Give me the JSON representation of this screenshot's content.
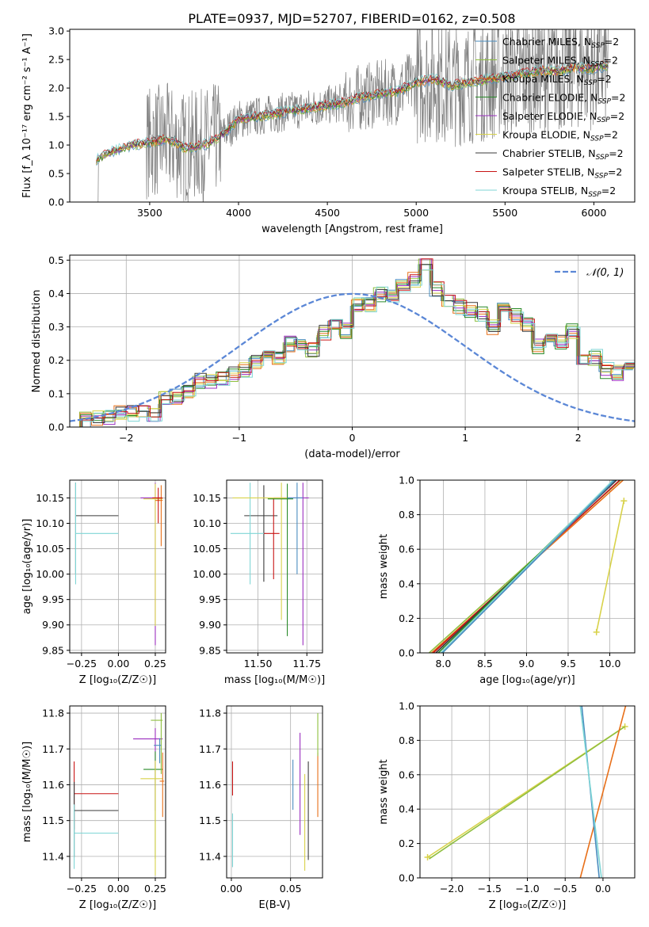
{
  "title": "PLATE=0937, MJD=52707, FIBERID=0162, z=0.508",
  "colors": {
    "chabrier_miles": "#4a8dbf",
    "salpeter_miles": "#8fbf3f",
    "kroupa_miles": "#e8701a",
    "chabrier_elodie": "#2a8a2a",
    "salpeter_elodie": "#9b2fbf",
    "kroupa_elodie": "#d8d24a",
    "chabrier_stelib": "#3a3a3a",
    "salpeter_stelib": "#c81414",
    "kroupa_stelib": "#7fd6d6",
    "gauss": "#5b87d6",
    "data_spectrum": "#7f7f7f"
  },
  "chart_data": [
    {
      "id": "spectrum",
      "type": "line",
      "xlabel": "wavelength [Angstrom, rest frame]",
      "ylabel": "Flux [f_λ 10⁻¹⁷ erg cm⁻² s⁻¹ A⁻¹]",
      "xlim": [
        3050,
        6230
      ],
      "ylim": [
        0,
        3.03
      ],
      "xticks": [
        3500,
        4000,
        4500,
        5000,
        5500,
        6000
      ],
      "yticks": [
        0.0,
        0.5,
        1.0,
        1.5,
        2.0,
        2.5,
        3.0
      ],
      "grid": false,
      "legend_position": "upper-right",
      "legend": [
        {
          "label": "Chabrier MILES, N",
          "sub": "SSP",
          "tail": "=2",
          "color_key": "chabrier_miles"
        },
        {
          "label": "Salpeter MILES, N",
          "sub": "SSP",
          "tail": "=2",
          "color_key": "salpeter_miles"
        },
        {
          "label": "Kroupa MILES, N",
          "sub": "SSP",
          "tail": "=2",
          "color_key": "kroupa_miles"
        },
        {
          "label": "Chabrier ELODIE, N",
          "sub": "SSP",
          "tail": "=2",
          "color_key": "chabrier_elodie"
        },
        {
          "label": "Salpeter ELODIE, N",
          "sub": "SSP",
          "tail": "=2",
          "color_key": "salpeter_elodie"
        },
        {
          "label": "Kroupa ELODIE, N",
          "sub": "SSP",
          "tail": "=2",
          "color_key": "kroupa_elodie"
        },
        {
          "label": "Chabrier STELIB, N",
          "sub": "SSP",
          "tail": "=2",
          "color_key": "chabrier_stelib"
        },
        {
          "label": "Salpeter STELIB, N",
          "sub": "SSP",
          "tail": "=2",
          "color_key": "salpeter_stelib"
        },
        {
          "label": "Kroupa STELIB, N",
          "sub": "SSP",
          "tail": "=2",
          "color_key": "kroupa_stelib"
        }
      ],
      "model_x": [
        3200,
        3300,
        3400,
        3500,
        3600,
        3700,
        3800,
        3900,
        4000,
        4100,
        4200,
        4300,
        4400,
        4500,
        4600,
        4700,
        4800,
        4900,
        5000,
        5100,
        5200,
        5300,
        5400,
        5500,
        5600,
        5700,
        5800,
        5900,
        6000,
        6080
      ],
      "model_y": [
        0.75,
        0.9,
        1.0,
        1.05,
        1.1,
        0.95,
        1.0,
        1.15,
        1.45,
        1.5,
        1.55,
        1.6,
        1.65,
        1.7,
        1.75,
        1.85,
        1.9,
        1.95,
        2.1,
        2.15,
        2.05,
        2.1,
        2.15,
        2.2,
        2.25,
        2.3,
        2.3,
        2.35,
        2.35,
        2.4
      ]
    },
    {
      "id": "residuals",
      "type": "step",
      "xlabel": "(data-model)/error",
      "ylabel": "Normed distribution",
      "xlim": [
        -2.5,
        2.5
      ],
      "ylim": [
        0,
        0.515
      ],
      "xticks": [
        -2,
        -1,
        0,
        1,
        2
      ],
      "yticks": [
        0.0,
        0.1,
        0.2,
        0.3,
        0.4,
        0.5
      ],
      "grid": true,
      "legend_position": "upper-right",
      "legend_label": "𝒩(0, 1)",
      "bin_edges_start": -2.5,
      "bin_width": 0.1,
      "hist_values": [
        0.02,
        0.02,
        0.03,
        0.03,
        0.04,
        0.04,
        0.05,
        0.04,
        0.09,
        0.09,
        0.1,
        0.14,
        0.14,
        0.15,
        0.16,
        0.17,
        0.19,
        0.22,
        0.2,
        0.25,
        0.24,
        0.23,
        0.28,
        0.3,
        0.29,
        0.37,
        0.37,
        0.4,
        0.39,
        0.43,
        0.44,
        0.48,
        0.41,
        0.38,
        0.36,
        0.35,
        0.34,
        0.3,
        0.36,
        0.33,
        0.31,
        0.24,
        0.26,
        0.25,
        0.29,
        0.2,
        0.21,
        0.17,
        0.16,
        0.17
      ],
      "gauss": {
        "mean": 0,
        "sigma": 1
      }
    },
    {
      "id": "age_vs_Z",
      "type": "errorbar",
      "xlabel": "Z [log₁₀(Z/Z☉)]",
      "ylabel": "age  [log₁₀(age/yr)]",
      "xlim": [
        -0.33,
        0.32
      ],
      "ylim": [
        9.845,
        10.185
      ],
      "xticks": [
        -0.25,
        0.0,
        0.25
      ],
      "xtick_labels": [
        "−0.25",
        "0.00",
        "0.25"
      ],
      "yticks": [
        9.85,
        9.9,
        9.95,
        10.0,
        10.05,
        10.1,
        10.15
      ],
      "grid": true,
      "points": [
        {
          "color_key": "chabrier_stelib",
          "x": -0.29,
          "y": 10.115,
          "xerr": [
            0.0,
            0.29
          ],
          "yerr": [
            0.115,
            0.065
          ]
        },
        {
          "color_key": "kroupa_stelib",
          "x": -0.29,
          "y": 10.08,
          "xerr": [
            0.0,
            0.29
          ],
          "yerr": [
            0.1,
            0.1
          ]
        },
        {
          "color_key": "salpeter_elodie",
          "x": 0.25,
          "y": 10.15,
          "xerr": [
            0.1,
            0.04
          ],
          "yerr": [
            0.29,
            0.03
          ]
        },
        {
          "color_key": "kroupa_elodie",
          "x": 0.25,
          "y": 10.148,
          "xerr": [
            0.08,
            0.05
          ],
          "yerr": [
            0.25,
            0.03
          ]
        },
        {
          "color_key": "kroupa_miles",
          "x": 0.29,
          "y": 10.145,
          "xerr": [
            0.04,
            0.01
          ],
          "yerr": [
            0.09,
            0.03
          ]
        },
        {
          "color_key": "salpeter_stelib",
          "x": 0.27,
          "y": 10.15,
          "xerr": [
            0.04,
            0.03
          ],
          "yerr": [
            0.05,
            0.02
          ]
        }
      ]
    },
    {
      "id": "age_vs_mass",
      "type": "errorbar",
      "xlabel": "mass [log₁₀(M/M☉)]",
      "ylabel": "",
      "xlim": [
        11.34,
        11.83
      ],
      "ylim": [
        9.845,
        10.185
      ],
      "xticks": [
        11.5,
        11.75
      ],
      "xtick_labels": [
        "11.50",
        "11.75"
      ],
      "yticks": [
        9.85,
        9.9,
        9.95,
        10.0,
        10.05,
        10.1,
        10.15
      ],
      "grid": true,
      "points": [
        {
          "color_key": "chabrier_stelib",
          "x": 11.53,
          "y": 10.115,
          "xerr": [
            0.1,
            0.07
          ],
          "yerr": [
            0.13,
            0.06
          ]
        },
        {
          "color_key": "kroupa_stelib",
          "x": 11.46,
          "y": 10.08,
          "xerr": [
            0.1,
            0.08
          ],
          "yerr": [
            0.1,
            0.1
          ]
        },
        {
          "color_key": "salpeter_stelib",
          "x": 11.58,
          "y": 10.08,
          "xerr": [
            0.05,
            0.03
          ],
          "yerr": [
            0.09,
            0.07
          ]
        },
        {
          "color_key": "salpeter_elodie",
          "x": 11.73,
          "y": 10.15,
          "xerr": [
            0.15,
            0.03
          ],
          "yerr": [
            0.29,
            0.03
          ]
        },
        {
          "color_key": "kroupa_elodie",
          "x": 11.62,
          "y": 10.15,
          "xerr": [
            0.25,
            0.03
          ],
          "yerr": [
            0.24,
            0.03
          ]
        },
        {
          "color_key": "chabrier_elodie",
          "x": 11.65,
          "y": 10.148,
          "xerr": [
            0.1,
            0.03
          ],
          "yerr": [
            0.27,
            0.03
          ]
        },
        {
          "color_key": "chabrier_miles",
          "x": 11.7,
          "y": 10.15,
          "xerr": [
            0.05,
            0.03
          ],
          "yerr": [
            0.15,
            0.03
          ]
        }
      ]
    },
    {
      "id": "weight_vs_age",
      "type": "line",
      "xlabel": "age  [log₁₀(age/yr)]",
      "ylabel": "mass weight",
      "xlim": [
        7.72,
        10.3
      ],
      "ylim": [
        0,
        1
      ],
      "xticks": [
        8.0,
        8.5,
        9.0,
        9.5,
        10.0
      ],
      "yticks": [
        0.0,
        0.2,
        0.4,
        0.6,
        0.8,
        1.0
      ],
      "grid": true,
      "series": [
        {
          "color_key": "salpeter_miles",
          "x": [
            7.83,
            10.13
          ],
          "y": [
            0.0,
            1.0
          ],
          "marker": false
        },
        {
          "color_key": "kroupa_miles",
          "x": [
            7.86,
            10.16
          ],
          "y": [
            0.0,
            1.0
          ],
          "marker": false
        },
        {
          "color_key": "salpeter_stelib",
          "x": [
            7.88,
            10.12
          ],
          "y": [
            0.0,
            1.0
          ],
          "marker": false
        },
        {
          "color_key": "chabrier_stelib",
          "x": [
            7.91,
            10.08
          ],
          "y": [
            0.0,
            1.0
          ],
          "marker": false
        },
        {
          "color_key": "chabrier_elodie",
          "x": [
            7.94,
            10.05
          ],
          "y": [
            0.0,
            1.0
          ],
          "marker": false
        },
        {
          "color_key": "kroupa_stelib",
          "x": [
            7.97,
            10.04
          ],
          "y": [
            0.0,
            1.0
          ],
          "marker": false
        },
        {
          "color_key": "chabrier_miles",
          "x": [
            7.99,
            10.06
          ],
          "y": [
            0.0,
            1.0
          ],
          "marker": false
        },
        {
          "color_key": "kroupa_elodie",
          "x": [
            9.84,
            10.17
          ],
          "y": [
            0.12,
            0.88
          ],
          "marker": true
        }
      ]
    },
    {
      "id": "mass_vs_Z",
      "type": "errorbar",
      "xlabel": "Z [log₁₀(Z/Z☉)]",
      "ylabel": "mass [log₁₀(M/M☉)]",
      "xlim": [
        -0.33,
        0.32
      ],
      "ylim": [
        11.34,
        11.82
      ],
      "xticks": [
        -0.25,
        0.0,
        0.25
      ],
      "xtick_labels": [
        "−0.25",
        "0.00",
        "0.25"
      ],
      "yticks": [
        11.4,
        11.5,
        11.6,
        11.7,
        11.8
      ],
      "grid": true,
      "points": [
        {
          "color_key": "salpeter_stelib",
          "x": -0.3,
          "y": 11.575,
          "xerr": [
            0.0,
            0.3
          ],
          "yerr": [
            0.1,
            0.09
          ]
        },
        {
          "color_key": "chabrier_stelib",
          "x": -0.3,
          "y": 11.528,
          "xerr": [
            0.0,
            0.3
          ],
          "yerr": [
            0.13,
            0.08
          ]
        },
        {
          "color_key": "kroupa_stelib",
          "x": -0.3,
          "y": 11.465,
          "xerr": [
            0.0,
            0.3
          ],
          "yerr": [
            0.1,
            0.08
          ]
        },
        {
          "color_key": "salpeter_elodie",
          "x": 0.25,
          "y": 11.728,
          "xerr": [
            0.15,
            0.05
          ],
          "yerr": [
            0.2,
            0.03
          ]
        },
        {
          "color_key": "chabrier_elodie",
          "x": 0.25,
          "y": 11.643,
          "xerr": [
            0.08,
            0.05
          ],
          "yerr": [
            0.25,
            0.05
          ]
        },
        {
          "color_key": "kroupa_elodie",
          "x": 0.25,
          "y": 11.617,
          "xerr": [
            0.1,
            0.05
          ],
          "yerr": [
            0.27,
            0.05
          ]
        },
        {
          "color_key": "salpeter_miles",
          "x": 0.29,
          "y": 11.78,
          "xerr": [
            0.07,
            0.01
          ],
          "yerr": [
            0.15,
            0.02
          ]
        },
        {
          "color_key": "kroupa_miles",
          "x": 0.3,
          "y": 11.61,
          "xerr": [
            0.02,
            0.01
          ],
          "yerr": [
            0.1,
            0.08
          ]
        },
        {
          "color_key": "chabrier_miles",
          "x": 0.28,
          "y": 11.71,
          "xerr": [
            0.04,
            0.01
          ],
          "yerr": [
            0.05,
            0.02
          ]
        }
      ]
    },
    {
      "id": "mass_vs_ebv",
      "type": "errorbar",
      "xlabel": "E(B-V)",
      "ylabel": "",
      "xlim": [
        -0.004,
        0.077
      ],
      "ylim": [
        11.34,
        11.82
      ],
      "xticks": [
        0.0,
        0.05
      ],
      "xtick_labels": [
        "0.00",
        "0.05"
      ],
      "yticks": [
        11.4,
        11.5,
        11.6,
        11.7,
        11.8
      ],
      "grid": true,
      "points": [
        {
          "color_key": "salpeter_stelib",
          "x": 0.001,
          "y": 11.6,
          "xerr": [
            0,
            0
          ],
          "yerr": [
            0.03,
            0.065
          ]
        },
        {
          "color_key": "kroupa_stelib",
          "x": 0.001,
          "y": 11.47,
          "xerr": [
            0,
            0
          ],
          "yerr": [
            0.1,
            0.05
          ]
        },
        {
          "color_key": "chabrier_miles",
          "x": 0.052,
          "y": 11.6,
          "xerr": [
            0,
            0
          ],
          "yerr": [
            0.07,
            0.07
          ]
        },
        {
          "color_key": "salpeter_elodie",
          "x": 0.058,
          "y": 11.6,
          "xerr": [
            0,
            0
          ],
          "yerr": [
            0.14,
            0.145
          ]
        },
        {
          "color_key": "kroupa_elodie",
          "x": 0.062,
          "y": 11.53,
          "xerr": [
            0,
            0
          ],
          "yerr": [
            0.17,
            0.1
          ]
        },
        {
          "color_key": "chabrier_stelib",
          "x": 0.065,
          "y": 11.53,
          "xerr": [
            0,
            0
          ],
          "yerr": [
            0.14,
            0.135
          ]
        },
        {
          "color_key": "kroupa_miles",
          "x": 0.073,
          "y": 11.6,
          "xerr": [
            0,
            0
          ],
          "yerr": [
            0.09,
            0.09
          ]
        },
        {
          "color_key": "salpeter_miles",
          "x": 0.073,
          "y": 11.72,
          "xerr": [
            0,
            0
          ],
          "yerr": [
            0.04,
            0.08
          ]
        }
      ]
    },
    {
      "id": "weight_vs_Z",
      "type": "line",
      "xlabel": "Z [log₁₀(Z/Z☉)]",
      "ylabel": "mass weight",
      "xlim": [
        -2.42,
        0.42
      ],
      "ylim": [
        0,
        1
      ],
      "xticks": [
        -2.0,
        -1.5,
        -1.0,
        -0.5,
        0.0
      ],
      "xtick_labels": [
        "−2.0",
        "−1.5",
        "−1.0",
        "−0.5",
        "0.0"
      ],
      "yticks": [
        0.0,
        0.2,
        0.4,
        0.6,
        0.8,
        1.0
      ],
      "grid": true,
      "series": [
        {
          "color_key": "kroupa_elodie",
          "x": [
            -2.32,
            0.29
          ],
          "y": [
            0.12,
            0.88
          ],
          "marker": true
        },
        {
          "color_key": "salpeter_miles",
          "x": [
            -2.3,
            0.29
          ],
          "y": [
            0.11,
            0.88
          ],
          "marker": false
        },
        {
          "color_key": "kroupa_miles",
          "x": [
            -0.3,
            0.3
          ],
          "y": [
            0.0,
            1.0
          ],
          "marker": false
        },
        {
          "color_key": "chabrier_miles",
          "x": [
            -0.05,
            -0.28
          ],
          "y": [
            0.0,
            1.0
          ],
          "marker": false
        },
        {
          "color_key": "kroupa_stelib",
          "x": [
            -0.02,
            -0.3
          ],
          "y": [
            0.0,
            1.0
          ],
          "marker": false
        }
      ]
    }
  ]
}
